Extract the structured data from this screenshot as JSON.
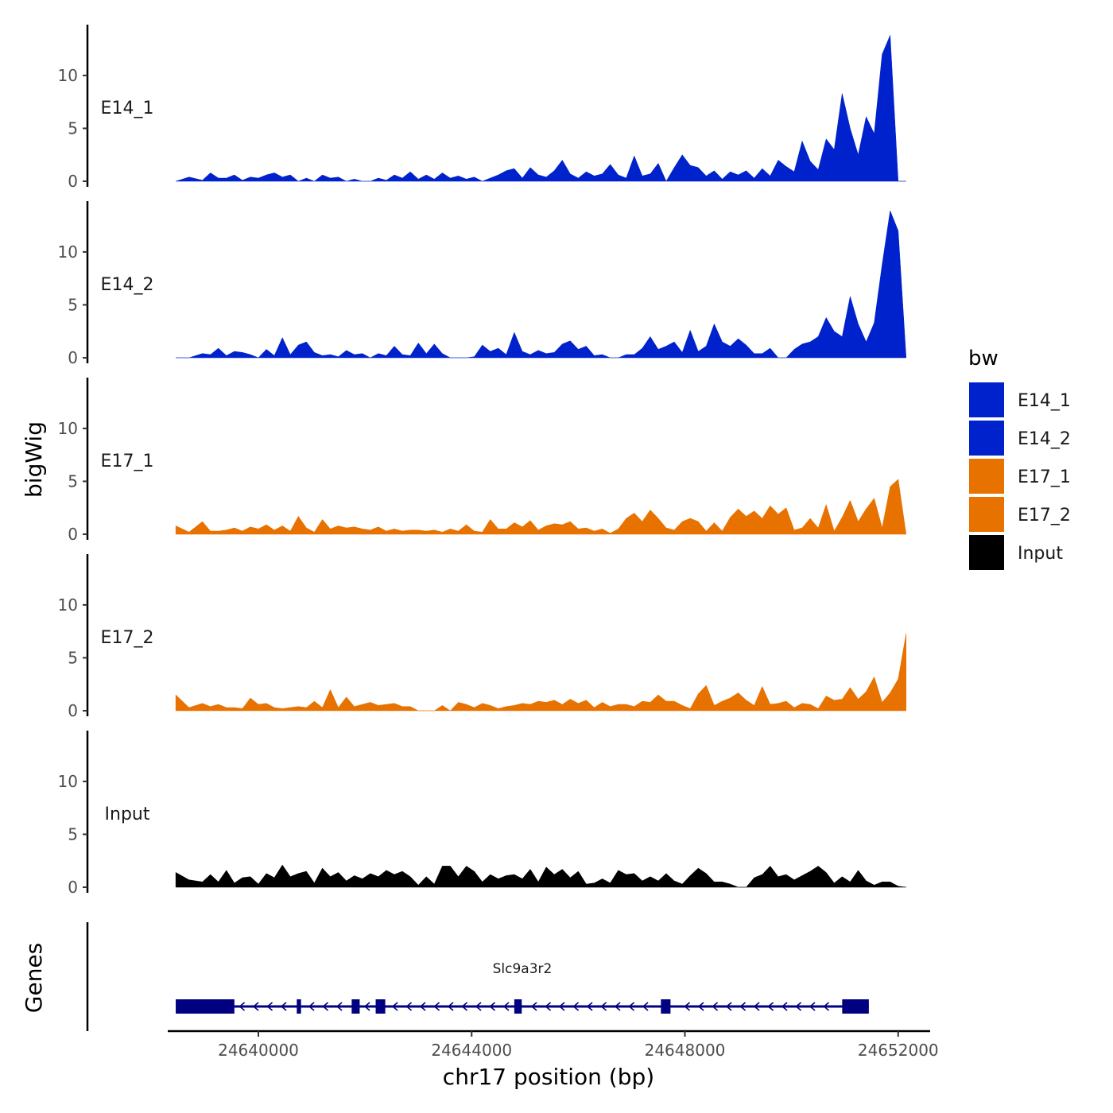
{
  "chart_data": {
    "type": "area",
    "ylabel": "bigWig",
    "genes_label": "Genes",
    "xlabel": "chr17 position (bp)",
    "xlim": [
      24638300,
      24652600
    ],
    "ylim": [
      0,
      14.5
    ],
    "y_ticks": [
      0,
      5,
      10
    ],
    "y_tick_labels": [
      "0",
      "5",
      "10"
    ],
    "x_ticks": [
      24640000,
      24644000,
      24648000,
      24652000
    ],
    "x_tick_labels": [
      "24640000",
      "24644000",
      "24648000",
      "24652000"
    ],
    "colors": {
      "E14": "#0022cc",
      "E17": "#e87200",
      "Input": "#000000",
      "gene": "#000080"
    },
    "legend": {
      "title": "bw",
      "entries": [
        {
          "name": "E14_1",
          "color": "#0022cc"
        },
        {
          "name": "E14_2",
          "color": "#0022cc"
        },
        {
          "name": "E17_1",
          "color": "#e87200"
        },
        {
          "name": "E17_2",
          "color": "#e87200"
        },
        {
          "name": "Input",
          "color": "#000000"
        }
      ]
    },
    "series": [
      {
        "name": "E14_1",
        "color": "#0022cc",
        "x": [
          24638450,
          24638700,
          24638950,
          24639100,
          24639250,
          24639400,
          24639550,
          24639700,
          24639850,
          24640000,
          24640150,
          24640300,
          24640450,
          24640600,
          24640750,
          24640900,
          24641050,
          24641200,
          24641350,
          24641500,
          24641650,
          24641800,
          24641950,
          24642100,
          24642250,
          24642400,
          24642550,
          24642700,
          24642850,
          24643000,
          24643150,
          24643300,
          24643450,
          24643600,
          24643750,
          24643900,
          24644050,
          24644200,
          24644350,
          24644500,
          24644650,
          24644800,
          24644950,
          24645100,
          24645250,
          24645400,
          24645550,
          24645700,
          24645850,
          24646000,
          24646150,
          24646300,
          24646450,
          24646600,
          24646750,
          24646900,
          24647050,
          24647200,
          24647350,
          24647500,
          24647650,
          24647800,
          24647950,
          24648100,
          24648250,
          24648400,
          24648550,
          24648700,
          24648850,
          24649000,
          24649150,
          24649300,
          24649450,
          24649600,
          24649750,
          24649900,
          24650050,
          24650200,
          24650350,
          24650500,
          24650650,
          24650800,
          24650950,
          24651100,
          24651250,
          24651400,
          24651550,
          24651700,
          24651850,
          24652000,
          24652150
        ],
        "values": [
          0.0,
          0.4,
          0.1,
          0.8,
          0.3,
          0.3,
          0.6,
          0.1,
          0.4,
          0.3,
          0.6,
          0.8,
          0.4,
          0.6,
          0.0,
          0.3,
          0.0,
          0.6,
          0.3,
          0.4,
          0.0,
          0.2,
          0.0,
          0.0,
          0.3,
          0.1,
          0.6,
          0.3,
          0.9,
          0.2,
          0.6,
          0.2,
          0.8,
          0.3,
          0.5,
          0.2,
          0.4,
          0.0,
          0.3,
          0.6,
          1.0,
          1.2,
          0.3,
          1.3,
          0.6,
          0.4,
          1.0,
          2.0,
          0.7,
          0.3,
          0.9,
          0.5,
          0.7,
          1.6,
          0.6,
          0.3,
          2.4,
          0.5,
          0.7,
          1.7,
          0.0,
          1.3,
          2.5,
          1.5,
          1.3,
          0.5,
          1.0,
          0.2,
          0.9,
          0.6,
          1.0,
          0.3,
          1.2,
          0.5,
          2.0,
          1.4,
          0.9,
          3.8,
          1.9,
          1.1,
          4.0,
          3.0,
          8.3,
          5.0,
          2.5,
          6.1,
          4.5,
          12.0,
          13.8,
          0.0,
          0.0
        ],
        "label": "E14_1"
      },
      {
        "name": "E14_2",
        "color": "#0022cc",
        "x": [
          24638450,
          24638700,
          24638950,
          24639100,
          24639250,
          24639400,
          24639550,
          24639700,
          24639850,
          24640000,
          24640150,
          24640300,
          24640450,
          24640600,
          24640750,
          24640900,
          24641050,
          24641200,
          24641350,
          24641500,
          24641650,
          24641800,
          24641950,
          24642100,
          24642250,
          24642400,
          24642550,
          24642700,
          24642850,
          24643000,
          24643150,
          24643300,
          24643450,
          24643600,
          24643750,
          24643900,
          24644050,
          24644200,
          24644350,
          24644500,
          24644650,
          24644800,
          24644950,
          24645100,
          24645250,
          24645400,
          24645550,
          24645700,
          24645850,
          24646000,
          24646150,
          24646300,
          24646450,
          24646600,
          24646750,
          24646900,
          24647050,
          24647200,
          24647350,
          24647500,
          24647650,
          24647800,
          24647950,
          24648100,
          24648250,
          24648400,
          24648550,
          24648700,
          24648850,
          24649000,
          24649150,
          24649300,
          24649450,
          24649600,
          24649750,
          24649900,
          24650050,
          24650200,
          24650350,
          24650500,
          24650650,
          24650800,
          24650950,
          24651100,
          24651250,
          24651400,
          24651550,
          24651700,
          24651850,
          24652000,
          24652150
        ],
        "values": [
          0.0,
          0.0,
          0.4,
          0.3,
          0.9,
          0.2,
          0.6,
          0.5,
          0.3,
          0.0,
          0.8,
          0.2,
          1.9,
          0.3,
          1.2,
          1.5,
          0.5,
          0.2,
          0.3,
          0.1,
          0.7,
          0.3,
          0.4,
          0.0,
          0.4,
          0.2,
          1.1,
          0.3,
          0.2,
          1.4,
          0.4,
          1.3,
          0.4,
          0.0,
          0.0,
          0.0,
          0.1,
          1.2,
          0.6,
          0.9,
          0.3,
          2.4,
          0.6,
          0.3,
          0.7,
          0.4,
          0.5,
          1.3,
          1.6,
          0.8,
          1.1,
          0.2,
          0.3,
          0.0,
          0.0,
          0.3,
          0.3,
          0.9,
          2.0,
          0.8,
          1.1,
          1.5,
          0.5,
          2.6,
          0.6,
          1.1,
          3.2,
          1.5,
          1.1,
          1.8,
          1.2,
          0.4,
          0.4,
          0.9,
          0.0,
          0.0,
          0.8,
          1.3,
          1.5,
          2.0,
          3.8,
          2.5,
          2.0,
          5.8,
          3.2,
          1.5,
          3.3,
          8.8,
          13.9,
          12.0,
          0.0
        ],
        "label": "E14_2"
      },
      {
        "name": "E17_1",
        "color": "#e87200",
        "x": [
          24638450,
          24638700,
          24638950,
          24639100,
          24639250,
          24639400,
          24639550,
          24639700,
          24639850,
          24640000,
          24640150,
          24640300,
          24640450,
          24640600,
          24640750,
          24640900,
          24641050,
          24641200,
          24641350,
          24641500,
          24641650,
          24641800,
          24641950,
          24642100,
          24642250,
          24642400,
          24642550,
          24642700,
          24642850,
          24643000,
          24643150,
          24643300,
          24643450,
          24643600,
          24643750,
          24643900,
          24644050,
          24644200,
          24644350,
          24644500,
          24644650,
          24644800,
          24644950,
          24645100,
          24645250,
          24645400,
          24645550,
          24645700,
          24645850,
          24646000,
          24646150,
          24646300,
          24646450,
          24646600,
          24646750,
          24646900,
          24647050,
          24647200,
          24647350,
          24647500,
          24647650,
          24647800,
          24647950,
          24648100,
          24648250,
          24648400,
          24648550,
          24648700,
          24648850,
          24649000,
          24649150,
          24649300,
          24649450,
          24649600,
          24649750,
          24649900,
          24650050,
          24650200,
          24650350,
          24650500,
          24650650,
          24650800,
          24650950,
          24651100,
          24651250,
          24651400,
          24651550,
          24651700,
          24651850,
          24652000,
          24652150
        ],
        "values": [
          0.8,
          0.2,
          1.2,
          0.3,
          0.3,
          0.4,
          0.6,
          0.3,
          0.7,
          0.5,
          0.9,
          0.4,
          0.8,
          0.3,
          1.7,
          0.6,
          0.2,
          1.4,
          0.5,
          0.8,
          0.6,
          0.7,
          0.5,
          0.4,
          0.7,
          0.3,
          0.5,
          0.3,
          0.4,
          0.4,
          0.3,
          0.4,
          0.2,
          0.5,
          0.3,
          0.9,
          0.3,
          0.2,
          1.4,
          0.5,
          0.5,
          1.1,
          0.7,
          1.3,
          0.4,
          0.8,
          1.0,
          0.9,
          1.2,
          0.5,
          0.6,
          0.3,
          0.5,
          0.1,
          0.5,
          1.5,
          2.0,
          1.2,
          2.3,
          1.5,
          0.6,
          0.4,
          1.2,
          1.5,
          1.2,
          0.3,
          1.1,
          0.3,
          1.6,
          2.4,
          1.7,
          2.2,
          1.5,
          2.7,
          1.9,
          2.5,
          0.4,
          0.6,
          1.5,
          0.6,
          2.8,
          0.3,
          1.6,
          3.2,
          1.2,
          2.4,
          3.4,
          0.6,
          4.5,
          5.2,
          0.0
        ],
        "label": "E17_1"
      },
      {
        "name": "E17_2",
        "color": "#e87200",
        "x": [
          24638450,
          24638700,
          24638950,
          24639100,
          24639250,
          24639400,
          24639550,
          24639700,
          24639850,
          24640000,
          24640150,
          24640300,
          24640450,
          24640600,
          24640750,
          24640900,
          24641050,
          24641200,
          24641350,
          24641500,
          24641650,
          24641800,
          24641950,
          24642100,
          24642250,
          24642400,
          24642550,
          24642700,
          24642850,
          24643000,
          24643150,
          24643300,
          24643450,
          24643600,
          24643750,
          24643900,
          24644050,
          24644200,
          24644350,
          24644500,
          24644650,
          24644800,
          24644950,
          24645100,
          24645250,
          24645400,
          24645550,
          24645700,
          24645850,
          24646000,
          24646150,
          24646300,
          24646450,
          24646600,
          24646750,
          24646900,
          24647050,
          24647200,
          24647350,
          24647500,
          24647650,
          24647800,
          24647950,
          24648100,
          24648250,
          24648400,
          24648550,
          24648700,
          24648850,
          24649000,
          24649150,
          24649300,
          24649450,
          24649600,
          24649750,
          24649900,
          24650050,
          24650200,
          24650350,
          24650500,
          24650650,
          24650800,
          24650950,
          24651100,
          24651250,
          24651400,
          24651550,
          24651700,
          24651850,
          24652000,
          24652150
        ],
        "values": [
          1.5,
          0.3,
          0.7,
          0.4,
          0.6,
          0.3,
          0.3,
          0.2,
          1.2,
          0.6,
          0.7,
          0.3,
          0.2,
          0.3,
          0.4,
          0.3,
          0.9,
          0.3,
          2.0,
          0.3,
          1.3,
          0.4,
          0.6,
          0.8,
          0.5,
          0.6,
          0.7,
          0.4,
          0.4,
          0.0,
          0.0,
          0.0,
          0.5,
          0.0,
          0.8,
          0.6,
          0.3,
          0.7,
          0.5,
          0.2,
          0.4,
          0.5,
          0.7,
          0.6,
          0.9,
          0.8,
          1.0,
          0.6,
          1.1,
          0.7,
          1.0,
          0.3,
          0.8,
          0.4,
          0.6,
          0.6,
          0.4,
          0.9,
          0.8,
          1.5,
          0.9,
          0.9,
          0.5,
          0.2,
          1.6,
          2.4,
          0.5,
          0.9,
          1.2,
          1.7,
          1.0,
          0.5,
          2.3,
          0.6,
          0.7,
          0.9,
          0.3,
          0.7,
          0.6,
          0.2,
          1.4,
          1.0,
          1.1,
          2.2,
          1.1,
          1.8,
          3.2,
          0.8,
          1.7,
          3.0,
          7.3
        ],
        "label": "E17_2"
      },
      {
        "name": "Input",
        "color": "#000000",
        "x": [
          24638450,
          24638700,
          24638950,
          24639100,
          24639250,
          24639400,
          24639550,
          24639700,
          24639850,
          24640000,
          24640150,
          24640300,
          24640450,
          24640600,
          24640750,
          24640900,
          24641050,
          24641200,
          24641350,
          24641500,
          24641650,
          24641800,
          24641950,
          24642100,
          24642250,
          24642400,
          24642550,
          24642700,
          24642850,
          24643000,
          24643150,
          24643300,
          24643450,
          24643600,
          24643750,
          24643900,
          24644050,
          24644200,
          24644350,
          24644500,
          24644650,
          24644800,
          24644950,
          24645100,
          24645250,
          24645400,
          24645550,
          24645700,
          24645850,
          24646000,
          24646150,
          24646300,
          24646450,
          24646600,
          24646750,
          24646900,
          24647050,
          24647200,
          24647350,
          24647500,
          24647650,
          24647800,
          24647950,
          24648100,
          24648250,
          24648400,
          24648550,
          24648700,
          24648850,
          24649000,
          24649150,
          24649300,
          24649450,
          24649600,
          24649750,
          24649900,
          24650050,
          24650200,
          24650350,
          24650500,
          24650650,
          24650800,
          24650950,
          24651100,
          24651250,
          24651400,
          24651550,
          24651700,
          24651850,
          24652000,
          24652150
        ],
        "values": [
          1.4,
          0.7,
          0.5,
          1.2,
          0.5,
          1.6,
          0.4,
          0.9,
          1.0,
          0.3,
          1.3,
          0.9,
          2.1,
          1.0,
          1.3,
          1.5,
          0.4,
          1.8,
          1.0,
          1.4,
          0.6,
          1.1,
          0.8,
          1.3,
          1.0,
          1.6,
          1.2,
          1.5,
          1.0,
          0.2,
          1.0,
          0.3,
          2.0,
          2.0,
          1.0,
          2.0,
          1.5,
          0.5,
          1.2,
          0.8,
          1.1,
          1.2,
          0.8,
          1.7,
          0.5,
          1.9,
          1.2,
          1.7,
          0.9,
          1.5,
          0.3,
          0.4,
          0.8,
          0.4,
          1.6,
          1.2,
          1.3,
          0.6,
          1.0,
          0.6,
          1.3,
          0.6,
          0.3,
          1.1,
          1.8,
          1.3,
          0.5,
          0.5,
          0.3,
          0.0,
          0.0,
          0.9,
          1.2,
          2.0,
          1.0,
          1.2,
          0.7,
          1.1,
          1.5,
          2.0,
          1.4,
          0.4,
          1.0,
          0.5,
          1.6,
          0.6,
          0.2,
          0.5,
          0.5,
          0.1,
          0.0
        ],
        "label": "Input"
      }
    ],
    "gene": {
      "name": "Slc9a3r2",
      "strand": "-",
      "start": 24638450,
      "end": 24651450,
      "exons": [
        {
          "start": 24638450,
          "end": 24639550
        },
        {
          "start": 24640720,
          "end": 24640800
        },
        {
          "start": 24641750,
          "end": 24641900
        },
        {
          "start": 24642200,
          "end": 24642380
        },
        {
          "start": 24644800,
          "end": 24644940
        },
        {
          "start": 24647550,
          "end": 24647730
        },
        {
          "start": 24650950,
          "end": 24651450
        }
      ]
    }
  }
}
